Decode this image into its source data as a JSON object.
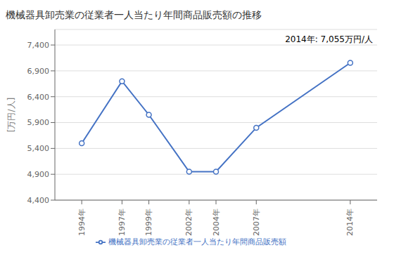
{
  "chart_data": {
    "type": "line",
    "title": "機械器具卸売業の従業者一人当たり年間商品販売額の推移",
    "ylabel": "[万円/人]",
    "annotation": "2014年: 7,055万円/人",
    "x": [
      1994,
      1997,
      1999,
      2002,
      2004,
      2007,
      2014
    ],
    "series": [
      {
        "name": "機械器具卸売業の従業者一人当たり年間商品販売額",
        "color": "#4472C4",
        "marker": "o",
        "values": [
          5500,
          6700,
          6050,
          4950,
          4950,
          5800,
          7055
        ]
      }
    ],
    "xlim": [
      1992,
      2016
    ],
    "xticks": [
      {
        "value": 1994,
        "label": "1994年"
      },
      {
        "value": 1997,
        "label": "1997年"
      },
      {
        "value": 1999,
        "label": "1999年"
      },
      {
        "value": 2002,
        "label": "2002年"
      },
      {
        "value": 2004,
        "label": "2004年"
      },
      {
        "value": 2007,
        "label": "2007年"
      },
      {
        "value": 2014,
        "label": "2014年"
      }
    ],
    "ylim": [
      4400,
      7700
    ],
    "yticks": [
      {
        "value": 4400,
        "label": "4,400"
      },
      {
        "value": 4900,
        "label": "4,900"
      },
      {
        "value": 5400,
        "label": "5,400"
      },
      {
        "value": 5900,
        "label": "5,900"
      },
      {
        "value": 6400,
        "label": "6,400"
      },
      {
        "value": 6900,
        "label": "6,900"
      },
      {
        "value": 7400,
        "label": "7,400"
      }
    ],
    "grid": true,
    "legend": "bottom"
  }
}
